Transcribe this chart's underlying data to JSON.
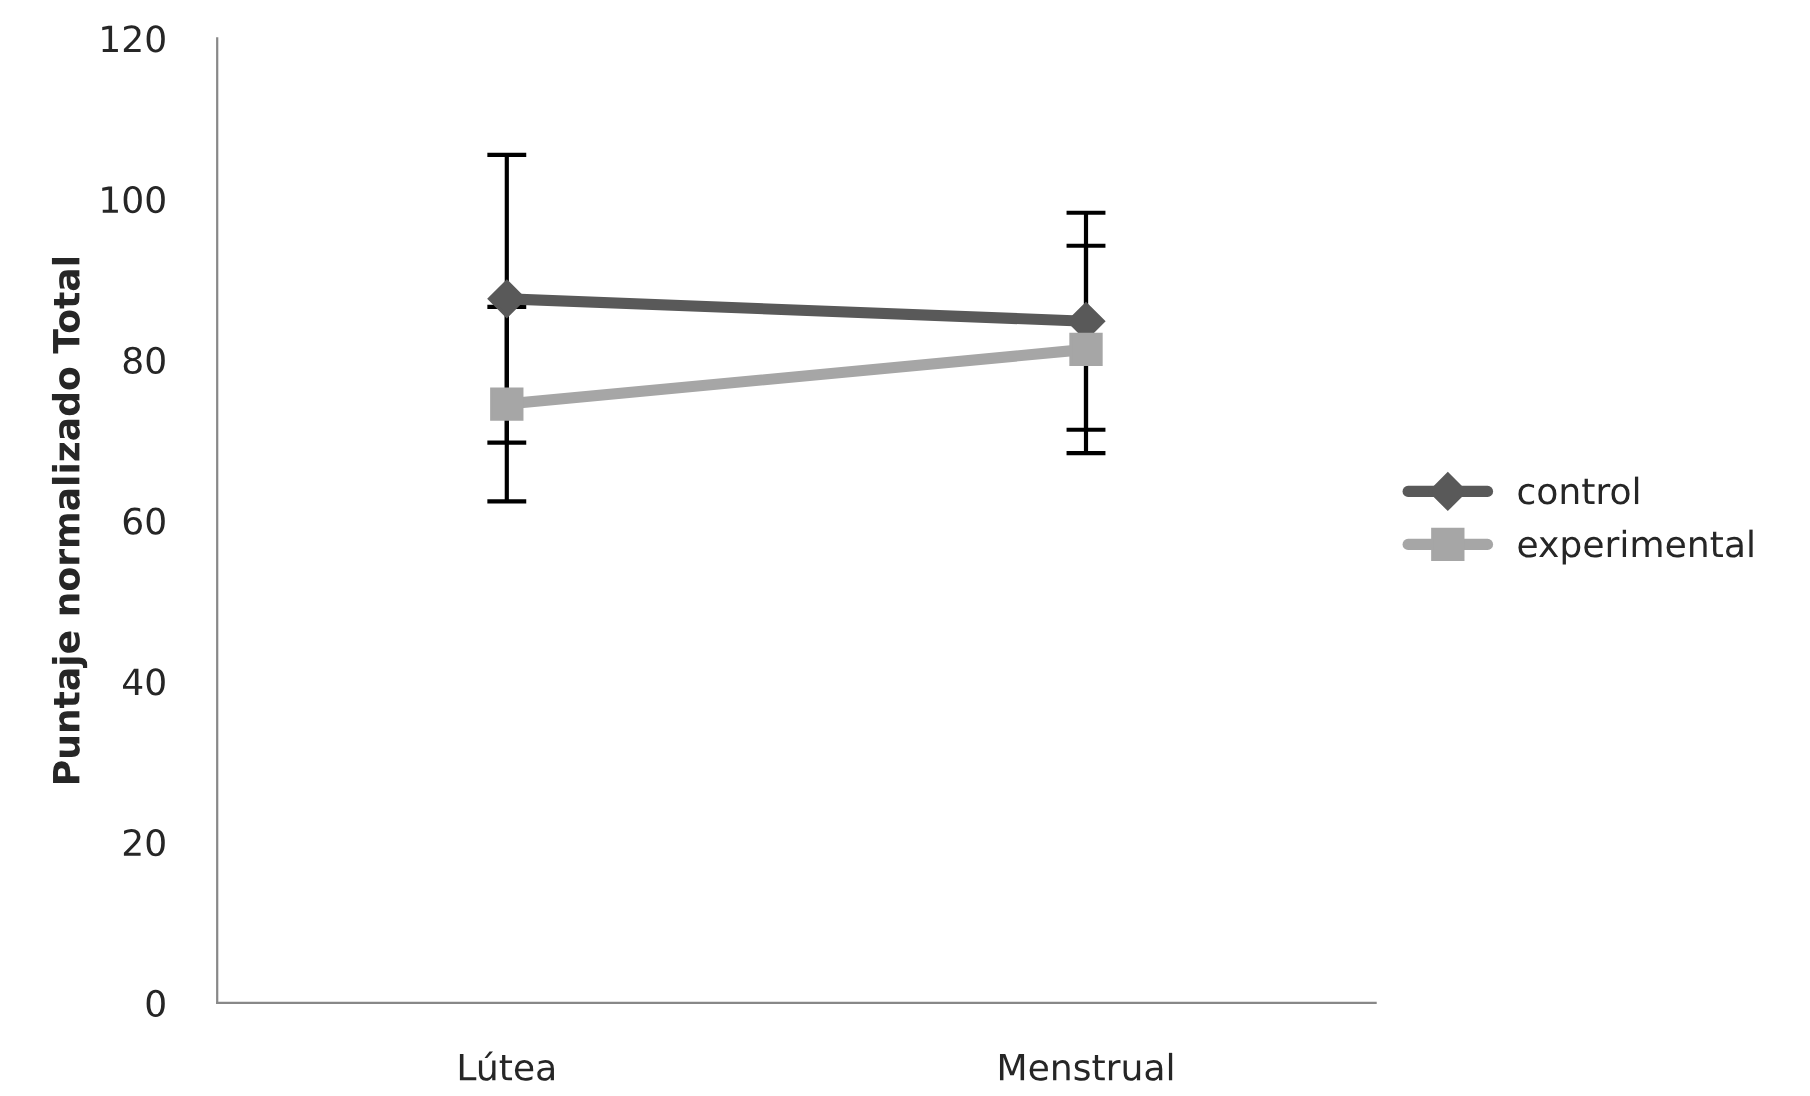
{
  "chart_data": {
    "type": "line",
    "ylabel": "Puntaje normalizado Total",
    "categories": [
      "Lútea",
      "Menstrual"
    ],
    "series": [
      {
        "name": "control",
        "color": "#595959",
        "values": [
          87.6,
          84.8
        ],
        "errors": [
          17.9,
          13.5
        ],
        "marker": "diamond"
      },
      {
        "name": "experimental",
        "color": "#a6a6a6",
        "values": [
          74.5,
          81.3
        ],
        "errors": [
          12.1,
          12.9
        ],
        "marker": "square"
      }
    ],
    "ylim": [
      0,
      120
    ],
    "yticks": [
      0,
      20,
      40,
      60,
      80,
      100,
      120
    ],
    "grid": false,
    "legend": "right",
    "line_style": "solid"
  }
}
